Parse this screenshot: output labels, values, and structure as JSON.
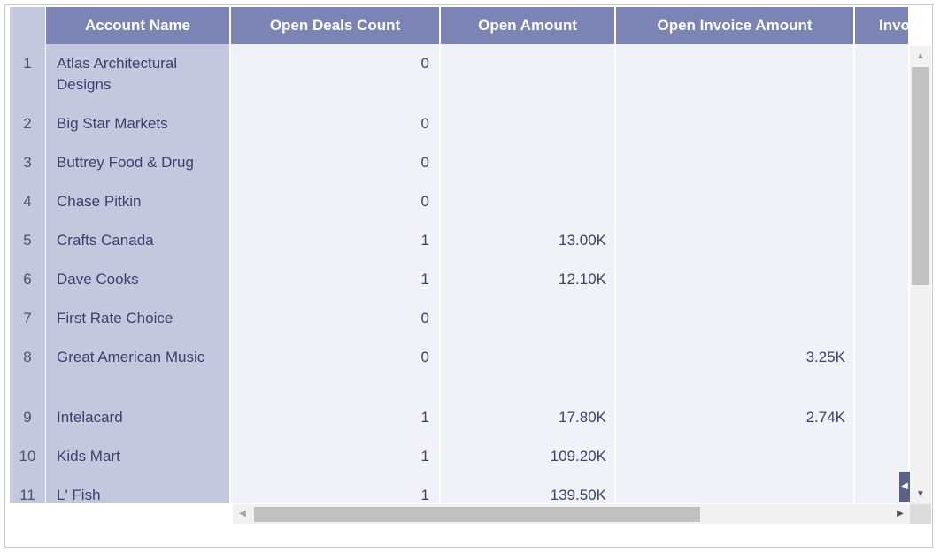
{
  "columns": [
    "Account Name",
    "Open Deals Count",
    "Open Amount",
    "Open Invoice Amount",
    "Invo"
  ],
  "rows": [
    {
      "num": "1",
      "account": "Atlas Architectural Designs",
      "deals": "0",
      "open_amount": "",
      "invoice_amount": ""
    },
    {
      "num": "2",
      "account": "Big Star Markets",
      "deals": "0",
      "open_amount": "",
      "invoice_amount": ""
    },
    {
      "num": "3",
      "account": "Buttrey Food & Drug",
      "deals": "0",
      "open_amount": "",
      "invoice_amount": ""
    },
    {
      "num": "4",
      "account": "Chase Pitkin",
      "deals": "0",
      "open_amount": "",
      "invoice_amount": ""
    },
    {
      "num": "5",
      "account": "Crafts Canada",
      "deals": "1",
      "open_amount": "13.00K",
      "invoice_amount": ""
    },
    {
      "num": "6",
      "account": "Dave Cooks",
      "deals": "1",
      "open_amount": "12.10K",
      "invoice_amount": ""
    },
    {
      "num": "7",
      "account": "First Rate Choice",
      "deals": "0",
      "open_amount": "",
      "invoice_amount": ""
    },
    {
      "num": "8",
      "account": "Great American Music",
      "deals": "0",
      "open_amount": "",
      "invoice_amount": "3.25K"
    },
    {
      "num": "9",
      "account": "Intelacard",
      "deals": "1",
      "open_amount": "17.80K",
      "invoice_amount": "2.74K"
    },
    {
      "num": "10",
      "account": "Kids Mart",
      "deals": "1",
      "open_amount": "109.20K",
      "invoice_amount": ""
    },
    {
      "num": "11",
      "account": "L' Fish",
      "deals": "1",
      "open_amount": "139.50K",
      "invoice_amount": ""
    }
  ],
  "scrollbars": {
    "vertical_up_icon": "triangle-up-icon",
    "vertical_down_icon": "triangle-down-icon",
    "horizontal_left_icon": "triangle-left-icon",
    "horizontal_right_icon": "triangle-right-icon",
    "collapse_icon": "triangle-left-icon"
  },
  "colors": {
    "header_bg": "#7b84b4",
    "frozen_column_bg": "#c4c8de",
    "body_bg": "#f1f2f8",
    "text": "#3b4269"
  }
}
